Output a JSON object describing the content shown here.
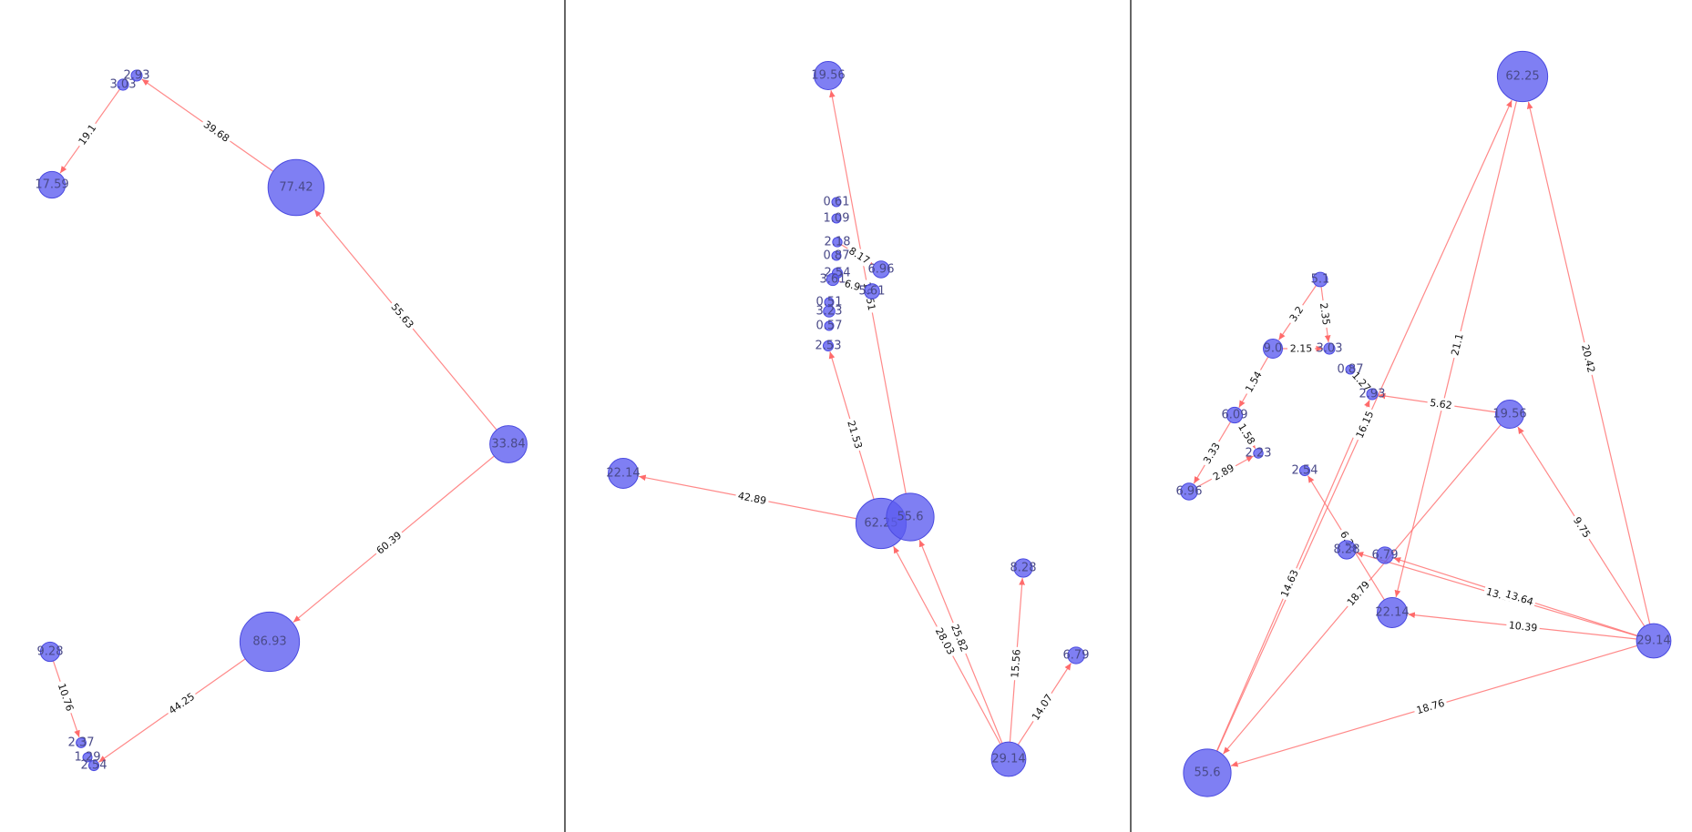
{
  "colors": {
    "node": "#5b5bf0",
    "edge": "#ff6b6b",
    "divider": "#333333"
  },
  "panels": [
    {
      "nodes": [
        {
          "id": "a1",
          "label": "77.42",
          "value": 77.42
        },
        {
          "id": "a2",
          "label": "33.84",
          "value": 33.84
        },
        {
          "id": "a3",
          "label": "86.93",
          "value": 86.93
        },
        {
          "id": "a4",
          "label": "17.59",
          "value": 17.59
        },
        {
          "id": "a5",
          "label": "9.28",
          "value": 9.28
        },
        {
          "id": "a6",
          "label": "3.03",
          "value": 3.03
        },
        {
          "id": "a7",
          "label": "2.93",
          "value": 2.93
        },
        {
          "id": "a8",
          "label": "2.37",
          "value": 2.37
        },
        {
          "id": "a9",
          "label": "1.29",
          "value": 1.29
        },
        {
          "id": "a10",
          "label": "2.54",
          "value": 2.54
        }
      ],
      "edges": [
        {
          "from": "a2",
          "to": "a1",
          "label": "55.63"
        },
        {
          "from": "a2",
          "to": "a3",
          "label": "60.39"
        },
        {
          "from": "a1",
          "to": "a7",
          "label": "39.68"
        },
        {
          "from": "a6",
          "to": "a4",
          "label": "19.1"
        },
        {
          "from": "a3",
          "to": "a10",
          "label": "44.25"
        },
        {
          "from": "a5",
          "to": "a8",
          "label": "10.76"
        }
      ]
    },
    {
      "nodes": [
        {
          "id": "b1",
          "label": "19.56",
          "value": 19.56
        },
        {
          "id": "b2",
          "label": "22.14",
          "value": 22.14
        },
        {
          "id": "b3",
          "label": "62.25",
          "value": 62.25
        },
        {
          "id": "b4",
          "label": "55.6",
          "value": 55.6
        },
        {
          "id": "b5",
          "label": "8.28",
          "value": 8.28
        },
        {
          "id": "b6",
          "label": "6.79",
          "value": 6.79
        },
        {
          "id": "b7",
          "label": "29.14",
          "value": 29.14
        },
        {
          "id": "b8",
          "label": "6.96",
          "value": 6.96
        },
        {
          "id": "b9",
          "label": "0.61",
          "value": 0.61
        },
        {
          "id": "b10",
          "label": "1.09",
          "value": 1.09
        },
        {
          "id": "b11",
          "label": "2.18",
          "value": 2.18
        },
        {
          "id": "b12",
          "label": "0.87",
          "value": 0.87
        },
        {
          "id": "b13",
          "label": "2.54",
          "value": 2.54
        },
        {
          "id": "b14",
          "label": "3.61",
          "value": 3.61
        },
        {
          "id": "b15",
          "label": "0.51",
          "value": 0.51
        },
        {
          "id": "b16",
          "label": "3.23",
          "value": 3.23
        },
        {
          "id": "b17",
          "label": "0.57",
          "value": 0.57
        },
        {
          "id": "b18",
          "label": "2.53",
          "value": 2.53
        },
        {
          "id": "b19",
          "label": "5.61",
          "value": 5.61
        }
      ],
      "edges": [
        {
          "from": "b3",
          "to": "b2",
          "label": "42.89"
        },
        {
          "from": "b4",
          "to": "b1",
          "label": "19.51"
        },
        {
          "from": "b3",
          "to": "b18",
          "label": "21.53"
        },
        {
          "from": "b7",
          "to": "b3",
          "label": "28.03"
        },
        {
          "from": "b7",
          "to": "b4",
          "label": "25.82"
        },
        {
          "from": "b7",
          "to": "b5",
          "label": "15.56"
        },
        {
          "from": "b7",
          "to": "b6",
          "label": "14.07"
        },
        {
          "from": "b11",
          "to": "b8",
          "label": "8.17"
        },
        {
          "from": "b14",
          "to": "b19",
          "label": "6.9"
        }
      ]
    },
    {
      "nodes": [
        {
          "id": "c1",
          "label": "62.25",
          "value": 62.25
        },
        {
          "id": "c2",
          "label": "19.56",
          "value": 19.56
        },
        {
          "id": "c3",
          "label": "22.14",
          "value": 22.14
        },
        {
          "id": "c4",
          "label": "29.14",
          "value": 29.14
        },
        {
          "id": "c5",
          "label": "55.6",
          "value": 55.6
        },
        {
          "id": "c6",
          "label": "5.1",
          "value": 5.1
        },
        {
          "id": "c7",
          "label": "9.0",
          "value": 9.0
        },
        {
          "id": "c8",
          "label": "6.09",
          "value": 6.09
        },
        {
          "id": "c9",
          "label": "6.96",
          "value": 6.96
        },
        {
          "id": "c10",
          "label": "8.28",
          "value": 8.28
        },
        {
          "id": "c11",
          "label": "6.79",
          "value": 6.79
        },
        {
          "id": "c12",
          "label": "2.93",
          "value": 2.93
        },
        {
          "id": "c13",
          "label": "2.54",
          "value": 2.54
        },
        {
          "id": "c14",
          "label": "3.03",
          "value": 3.03
        },
        {
          "id": "c15",
          "label": "0.87",
          "value": 0.87
        },
        {
          "id": "c16",
          "label": "2.23",
          "value": 2.23
        }
      ],
      "edges": [
        {
          "from": "c5",
          "to": "c1",
          "label": "16.15"
        },
        {
          "from": "c1",
          "to": "c3",
          "label": "21.1"
        },
        {
          "from": "c4",
          "to": "c1",
          "label": "20.42"
        },
        {
          "from": "c4",
          "to": "c2",
          "label": "9.75"
        },
        {
          "from": "c4",
          "to": "c3",
          "label": "10.39"
        },
        {
          "from": "c4",
          "to": "c5",
          "label": "18.76"
        },
        {
          "from": "c4",
          "to": "c10",
          "label": "13.13"
        },
        {
          "from": "c4",
          "to": "c11",
          "label": "13.64"
        },
        {
          "from": "c2",
          "to": "c5",
          "label": "18.79"
        },
        {
          "from": "c2",
          "to": "c12",
          "label": "5.62"
        },
        {
          "from": "c5",
          "to": "c12",
          "label": "14.63"
        },
        {
          "from": "c3",
          "to": "c13",
          "label": "6.28"
        },
        {
          "from": "c6",
          "to": "c7",
          "label": "3.2"
        },
        {
          "from": "c6",
          "to": "c14",
          "label": "2.35"
        },
        {
          "from": "c7",
          "to": "c14",
          "label": "2.15"
        },
        {
          "from": "c7",
          "to": "c8",
          "label": "1.54"
        },
        {
          "from": "c8",
          "to": "c9",
          "label": "3.33"
        },
        {
          "from": "c9",
          "to": "c16",
          "label": "2.89"
        },
        {
          "from": "c8",
          "to": "c16",
          "label": "1.58"
        },
        {
          "from": "c15",
          "to": "c12",
          "label": "1.27"
        }
      ]
    }
  ]
}
